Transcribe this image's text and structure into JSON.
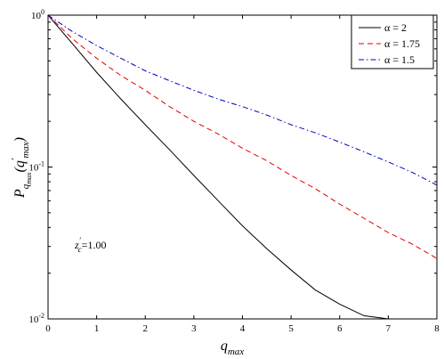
{
  "chart_data": {
    "type": "line",
    "xlabel_main": "q",
    "xlabel_sub": "max",
    "ylabel_main": "P",
    "ylabel_sub": "q",
    "ylabel_subsub": "max",
    "ylabel_arg_open": "(q",
    "ylabel_arg_prime": "′",
    "ylabel_arg_sub": "max",
    "ylabel_arg_close": ")",
    "xlim": [
      0,
      8
    ],
    "ylim": [
      0.01,
      1
    ],
    "yscale": "log",
    "x_ticks": [
      0,
      1,
      2,
      3,
      4,
      5,
      6,
      7,
      8
    ],
    "x_tick_labels": [
      "0",
      "1",
      "2",
      "3",
      "4",
      "5",
      "6",
      "7",
      "8"
    ],
    "y_ticks": [
      0.01,
      0.1,
      1
    ],
    "y_tick_base": "10",
    "y_tick_exponents": [
      "-2",
      "-1",
      "0"
    ],
    "legend_position": "top-right",
    "annotation": {
      "main": "z",
      "prime": "′",
      "sub": "c",
      "value": "=1.00",
      "x": 0.55,
      "y": 0.029
    },
    "series": [
      {
        "name": "α = 2",
        "color": "#000000",
        "dash": "solid",
        "x": [
          0,
          0.5,
          1,
          1.5,
          2,
          2.5,
          3,
          3.5,
          4,
          4.5,
          5,
          5.5,
          6,
          6.5,
          7
        ],
        "y": [
          1.0,
          0.65,
          0.42,
          0.28,
          0.19,
          0.13,
          0.088,
          0.06,
          0.041,
          0.029,
          0.021,
          0.0155,
          0.0125,
          0.0105,
          0.01
        ]
      },
      {
        "name": "α = 1.75",
        "color": "#e00000",
        "dash": "dashed",
        "x": [
          0,
          0.5,
          1,
          1.5,
          2,
          2.5,
          3,
          3.5,
          4,
          4.5,
          5,
          5.5,
          6,
          6.5,
          7,
          7.5,
          8
        ],
        "y": [
          1.0,
          0.7,
          0.52,
          0.4,
          0.32,
          0.25,
          0.2,
          0.165,
          0.133,
          0.11,
          0.088,
          0.072,
          0.057,
          0.046,
          0.037,
          0.031,
          0.025
        ]
      },
      {
        "name": "α = 1.5",
        "color": "#0000c0",
        "dash": "dashdot",
        "x": [
          0,
          0.5,
          1,
          1.5,
          2,
          2.5,
          3,
          3.5,
          4,
          4.5,
          5,
          5.5,
          6,
          6.5,
          7,
          7.5,
          8
        ],
        "y": [
          1.0,
          0.78,
          0.63,
          0.52,
          0.43,
          0.37,
          0.32,
          0.28,
          0.25,
          0.22,
          0.19,
          0.168,
          0.146,
          0.126,
          0.108,
          0.092,
          0.076
        ]
      }
    ]
  }
}
